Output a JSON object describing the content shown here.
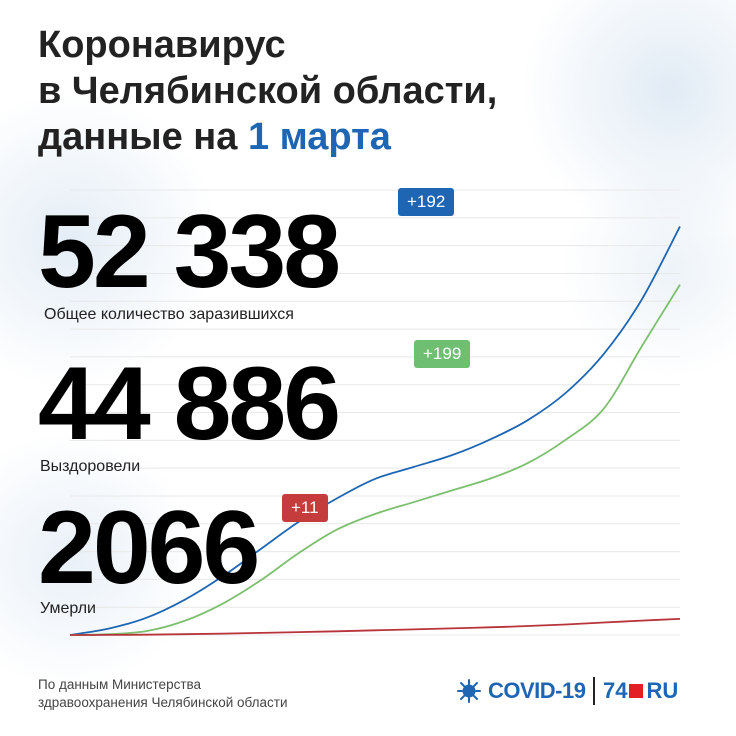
{
  "title": {
    "line1": "Коронавирус",
    "line2": "в Челябинской области,",
    "line3_prefix": "данные на ",
    "line3_date": "1 марта"
  },
  "stats": {
    "infected": {
      "value": "52 338",
      "delta": "+192",
      "label": "Общее количество заразившихся"
    },
    "recovered": {
      "value": "44 886",
      "delta": "+199",
      "label": "Выздоровели"
    },
    "deaths": {
      "value": "2066",
      "delta": "+11",
      "label": "Умерли"
    }
  },
  "footer": {
    "source_line1": "По данным Министерства",
    "source_line2": "здравоохранения Челябинской области",
    "logo_covid": "COVID-19",
    "logo_brand_prefix": "74",
    "logo_brand_suffix": "RU"
  },
  "colors": {
    "accent": "#1e66b4",
    "infected": "#1e66b4",
    "recovered": "#7cbf6e",
    "deaths": "#b8333a",
    "badge_infected": "#1e66b4",
    "badge_recovered": "#6fbf73",
    "badge_deaths": "#c43c3c",
    "brand_red": "#e31e24"
  },
  "chart_data": {
    "type": "line",
    "title": "",
    "xlabel": "",
    "ylabel": "",
    "grid": true,
    "ylim": [
      0,
      57000
    ],
    "series": [
      {
        "name": "Общее количество заразившихся",
        "values": [
          0,
          800,
          2200,
          4500,
          7500,
          11000,
          14500,
          17500,
          20000,
          21500,
          23000,
          25000,
          27500,
          31000,
          36000,
          43000,
          52338
        ]
      },
      {
        "name": "Выздоровели",
        "values": [
          0,
          100,
          500,
          1800,
          4000,
          7000,
          10500,
          13500,
          15500,
          17000,
          18500,
          20000,
          22000,
          25000,
          29000,
          37000,
          44886
        ]
      },
      {
        "name": "Умерли",
        "values": [
          0,
          10,
          40,
          100,
          180,
          270,
          370,
          480,
          600,
          720,
          850,
          980,
          1150,
          1350,
          1600,
          1850,
          2066
        ]
      }
    ]
  }
}
